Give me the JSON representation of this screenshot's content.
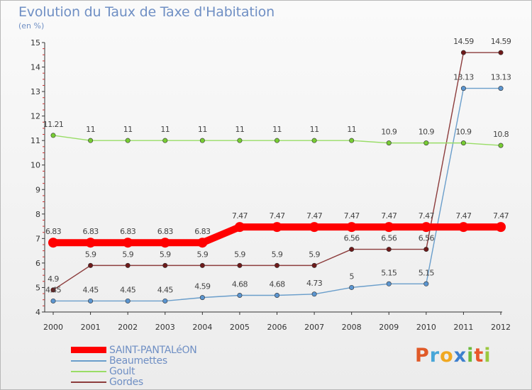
{
  "chart_data": {
    "type": "line",
    "title": "Evolution du Taux de Taxe d'Habitation",
    "subtitle": "(en %)",
    "x": [
      2000,
      2001,
      2002,
      2003,
      2004,
      2005,
      2006,
      2007,
      2008,
      2009,
      2010,
      2011,
      2012
    ],
    "ylim": [
      4,
      15
    ],
    "yticks": [
      4,
      5,
      6,
      7,
      8,
      9,
      10,
      11,
      12,
      13,
      14,
      15
    ],
    "grid": false,
    "legend_position": "bottom-left",
    "series": [
      {
        "name": "SAINT-PANTALéON",
        "color": "#ff0000",
        "marker_color": "#ff0000",
        "values": [
          6.83,
          6.83,
          6.83,
          6.83,
          6.83,
          7.47,
          7.47,
          7.47,
          7.47,
          7.47,
          7.47,
          7.47,
          7.47
        ],
        "labels": [
          "6.83",
          "6.83",
          "6.83",
          "6.83",
          "6.83",
          "7.47",
          "7.47",
          "7.47",
          "7.47",
          "7.47",
          "7.47",
          "7.47",
          "7.47"
        ]
      },
      {
        "name": "Beaumettes",
        "color": "#6a9ecb",
        "marker_color": "#5b95d0",
        "values": [
          4.45,
          4.45,
          4.45,
          4.45,
          4.59,
          4.68,
          4.68,
          4.73,
          5,
          5.15,
          5.15,
          13.13,
          13.13
        ],
        "labels": [
          "4.45",
          "4.45",
          "4.45",
          "4.45",
          "4.59",
          "4.68",
          "4.68",
          "4.73",
          "5",
          "5.15",
          "5.15",
          "13.13",
          "13.13"
        ]
      },
      {
        "name": "Goult",
        "color": "#99dd66",
        "marker_color": "#77cc33",
        "values": [
          11.21,
          11,
          11,
          11,
          11,
          11,
          11,
          11,
          11,
          10.9,
          10.9,
          10.9,
          10.8
        ],
        "labels": [
          "11.21",
          "11",
          "11",
          "11",
          "11",
          "11",
          "11",
          "11",
          "11",
          "10.9",
          "10.9",
          "10.9",
          "10.8"
        ]
      },
      {
        "name": "Gordes",
        "color": "#8c3c3c",
        "marker_color": "#6e1a1a",
        "values": [
          4.9,
          5.9,
          5.9,
          5.9,
          5.9,
          5.9,
          5.9,
          5.9,
          6.56,
          6.56,
          6.56,
          14.59,
          14.59
        ],
        "labels": [
          "4.9",
          "5.9",
          "5.9",
          "5.9",
          "5.9",
          "5.9",
          "5.9",
          "5.9",
          "6.56",
          "6.56",
          "6.56",
          "14.59",
          "14.59"
        ]
      }
    ]
  },
  "logo": {
    "text": [
      "P",
      "r",
      "o",
      "x",
      "i",
      "t",
      "i"
    ],
    "colors": [
      "#e05a28",
      "#47a6d8",
      "#f0a821",
      "#3d7fce",
      "#6cba3c",
      "#e8562b",
      "#9bc83e"
    ]
  }
}
